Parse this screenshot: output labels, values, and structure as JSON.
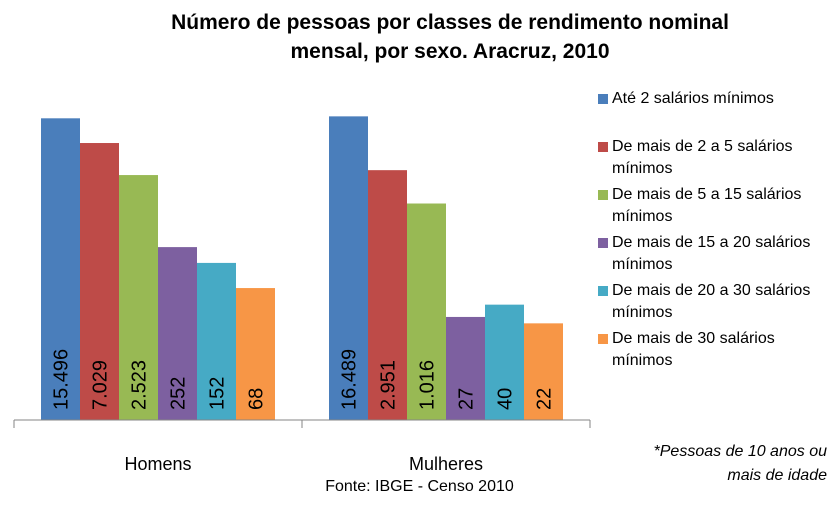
{
  "chart_data": {
    "type": "bar",
    "title": "Número de pessoas por classes de rendimento nominal mensal, por sexo. Aracruz, 2010",
    "categories": [
      "Homens",
      "Mulheres"
    ],
    "series": [
      {
        "name": "Até 2 salários mínimos",
        "color": "#4a7ebb",
        "values": [
          15496,
          16489
        ],
        "value_labels": [
          "15.496",
          "16.489"
        ]
      },
      {
        "name": "De mais de 2 a 5 salários mínimos",
        "color": "#be4b48",
        "values": [
          7029,
          2951
        ],
        "value_labels": [
          "7.029",
          "2.951"
        ]
      },
      {
        "name": "De mais de 5 a 15 salários mínimos",
        "color": "#98b954",
        "values": [
          2523,
          1016
        ],
        "value_labels": [
          "2.523",
          "1.016"
        ]
      },
      {
        "name": "De mais de 15 a 20 salários mínimos",
        "color": "#7d60a0",
        "values": [
          252,
          27
        ],
        "value_labels": [
          "252",
          "27"
        ]
      },
      {
        "name": "De mais de 20 a 30 salários mínimos",
        "color": "#46aac5",
        "values": [
          152,
          40
        ],
        "value_labels": [
          "152",
          "40"
        ]
      },
      {
        "name": "De mais de 30 salários mínimos",
        "color": "#f79646",
        "values": [
          68,
          22
        ],
        "value_labels": [
          "68",
          "22"
        ]
      }
    ],
    "ylim": [
      1,
      100000
    ],
    "log_scale": true,
    "note": "*Pessoas de 10 anos ou mais de idade",
    "source": "Fonte: IBGE - Censo 2010"
  }
}
